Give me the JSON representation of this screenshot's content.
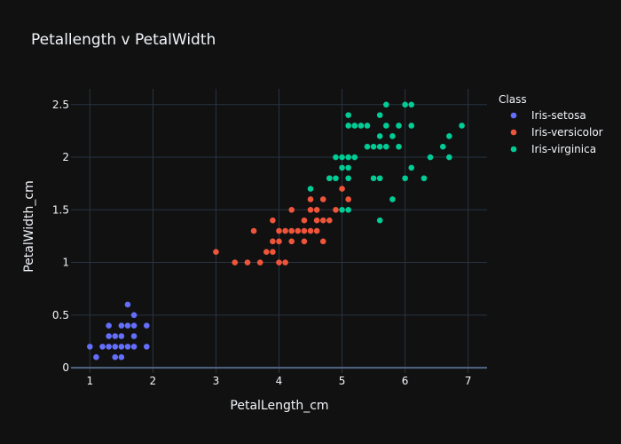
{
  "chart_data": {
    "type": "scatter",
    "title": "Petallength v PetalWidth",
    "xlabel": "PetalLength_cm",
    "ylabel": "PetalWidth_cm",
    "xlim": [
      0.7,
      7.3
    ],
    "ylim": [
      -0.05,
      2.65
    ],
    "x_ticks": [
      1,
      2,
      3,
      4,
      5,
      6,
      7
    ],
    "y_ticks": [
      0,
      0.5,
      1,
      1.5,
      2,
      2.5
    ],
    "x_tick_labels": [
      "1",
      "2",
      "3",
      "4",
      "5",
      "6",
      "7"
    ],
    "y_tick_labels": [
      "0",
      "0.5",
      "1",
      "1.5",
      "2",
      "2.5"
    ],
    "grid": true,
    "legend": {
      "title": "Class",
      "position": "right"
    },
    "series": [
      {
        "name": "Iris-setosa",
        "color": "#636efa",
        "points": [
          [
            1.0,
            0.2
          ],
          [
            1.1,
            0.1
          ],
          [
            1.2,
            0.2
          ],
          [
            1.3,
            0.2
          ],
          [
            1.3,
            0.3
          ],
          [
            1.3,
            0.4
          ],
          [
            1.4,
            0.1
          ],
          [
            1.4,
            0.2
          ],
          [
            1.4,
            0.3
          ],
          [
            1.5,
            0.1
          ],
          [
            1.5,
            0.2
          ],
          [
            1.5,
            0.3
          ],
          [
            1.5,
            0.4
          ],
          [
            1.6,
            0.2
          ],
          [
            1.6,
            0.4
          ],
          [
            1.6,
            0.6
          ],
          [
            1.7,
            0.2
          ],
          [
            1.7,
            0.3
          ],
          [
            1.7,
            0.4
          ],
          [
            1.7,
            0.5
          ],
          [
            1.9,
            0.2
          ],
          [
            1.9,
            0.4
          ]
        ]
      },
      {
        "name": "Iris-versicolor",
        "color": "#ef553b",
        "points": [
          [
            3.0,
            1.1
          ],
          [
            3.3,
            1.0
          ],
          [
            3.5,
            1.0
          ],
          [
            3.6,
            1.3
          ],
          [
            3.7,
            1.0
          ],
          [
            3.8,
            1.1
          ],
          [
            3.9,
            1.1
          ],
          [
            3.9,
            1.2
          ],
          [
            3.9,
            1.4
          ],
          [
            4.0,
            1.0
          ],
          [
            4.0,
            1.2
          ],
          [
            4.0,
            1.3
          ],
          [
            4.1,
            1.0
          ],
          [
            4.1,
            1.3
          ],
          [
            4.2,
            1.2
          ],
          [
            4.2,
            1.3
          ],
          [
            4.2,
            1.5
          ],
          [
            4.3,
            1.3
          ],
          [
            4.4,
            1.2
          ],
          [
            4.4,
            1.3
          ],
          [
            4.4,
            1.4
          ],
          [
            4.5,
            1.3
          ],
          [
            4.5,
            1.5
          ],
          [
            4.5,
            1.6
          ],
          [
            4.6,
            1.3
          ],
          [
            4.6,
            1.4
          ],
          [
            4.6,
            1.5
          ],
          [
            4.7,
            1.2
          ],
          [
            4.7,
            1.4
          ],
          [
            4.7,
            1.6
          ],
          [
            4.8,
            1.4
          ],
          [
            4.8,
            1.8
          ],
          [
            4.9,
            1.5
          ],
          [
            5.0,
            1.7
          ],
          [
            5.1,
            1.6
          ]
        ]
      },
      {
        "name": "Iris-virginica",
        "color": "#00cc96",
        "points": [
          [
            4.5,
            1.7
          ],
          [
            4.8,
            1.8
          ],
          [
            4.9,
            1.8
          ],
          [
            4.9,
            2.0
          ],
          [
            5.0,
            1.5
          ],
          [
            5.0,
            1.9
          ],
          [
            5.0,
            2.0
          ],
          [
            5.1,
            1.5
          ],
          [
            5.1,
            1.8
          ],
          [
            5.1,
            1.9
          ],
          [
            5.1,
            2.0
          ],
          [
            5.1,
            2.3
          ],
          [
            5.1,
            2.4
          ],
          [
            5.2,
            2.0
          ],
          [
            5.2,
            2.3
          ],
          [
            5.3,
            2.3
          ],
          [
            5.4,
            2.1
          ],
          [
            5.4,
            2.3
          ],
          [
            5.5,
            1.8
          ],
          [
            5.5,
            2.1
          ],
          [
            5.6,
            1.4
          ],
          [
            5.6,
            1.8
          ],
          [
            5.6,
            2.1
          ],
          [
            5.6,
            2.2
          ],
          [
            5.6,
            2.4
          ],
          [
            5.7,
            2.1
          ],
          [
            5.7,
            2.3
          ],
          [
            5.7,
            2.5
          ],
          [
            5.8,
            1.6
          ],
          [
            5.8,
            2.2
          ],
          [
            5.9,
            2.1
          ],
          [
            5.9,
            2.3
          ],
          [
            6.0,
            1.8
          ],
          [
            6.0,
            2.5
          ],
          [
            6.1,
            1.9
          ],
          [
            6.1,
            2.3
          ],
          [
            6.1,
            2.5
          ],
          [
            6.3,
            1.8
          ],
          [
            6.4,
            2.0
          ],
          [
            6.6,
            2.1
          ],
          [
            6.7,
            2.0
          ],
          [
            6.7,
            2.2
          ],
          [
            6.9,
            2.3
          ]
        ]
      }
    ]
  }
}
